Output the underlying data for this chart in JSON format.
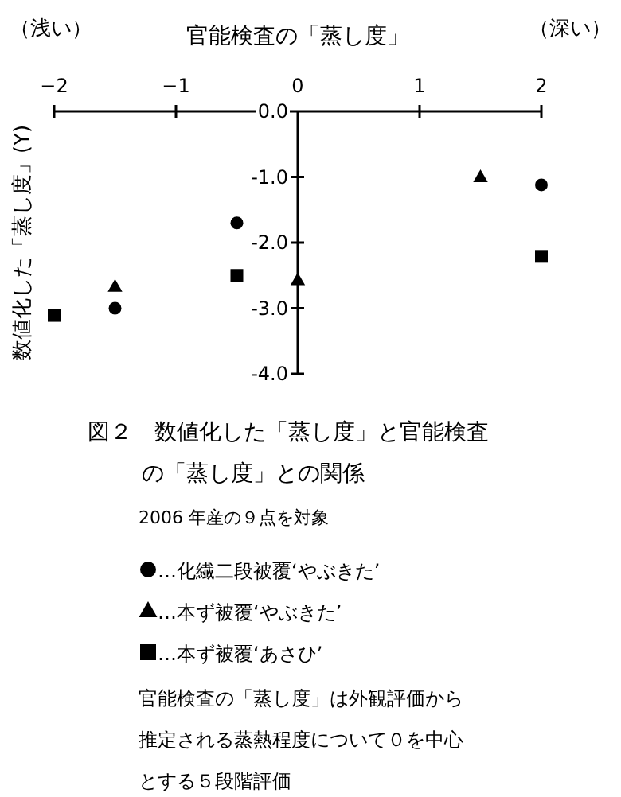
{
  "chart_data": {
    "type": "scatter",
    "title": "図２　数値化した「蒸し度」と官能検査の「蒸し度」との関係",
    "xlabel": "官能検査の「蒸し度」",
    "ylabel": "数値化した「蒸し度」(Y)",
    "annotations": [
      "（浅い）",
      "（深い）",
      "2006 年産の９点を対象",
      "官能検査の「蒸し度」は外観評価から推定される蒸熱程度について０を中心とする５段階評価"
    ],
    "xlim": [
      -2,
      2
    ],
    "xticks": [
      -2,
      -1,
      0,
      1,
      2
    ],
    "ylim": [
      -4,
      0
    ],
    "yticks": [
      {
        "value": 0,
        "label": "0.0"
      },
      {
        "value": -1,
        "label": "-1.0"
      },
      {
        "value": -2,
        "label": "-2.0"
      },
      {
        "value": -3,
        "label": "-3.0"
      },
      {
        "value": -4,
        "label": "-4.0"
      }
    ],
    "legend": "bottom",
    "grid": false,
    "series": [
      {
        "name": "…化繊二段被覆‘やぶきた’",
        "color": "#000000",
        "marker": "circle",
        "x": [
          -1.5,
          -0.5,
          2
        ],
        "values": [
          -3.0,
          -1.7,
          -1.12
        ]
      },
      {
        "name": "…本ず被覆‘やぶきた’",
        "color": "#000000",
        "marker": "triangle",
        "x": [
          -1.5,
          0,
          1.5
        ],
        "values": [
          -2.67,
          -2.57,
          -1.0
        ]
      },
      {
        "name": "…本ず被覆‘あさひ’",
        "color": "#000000",
        "marker": "square",
        "x": [
          -2,
          -0.5,
          2
        ],
        "values": [
          -3.11,
          -2.5,
          -2.21
        ]
      }
    ]
  }
}
